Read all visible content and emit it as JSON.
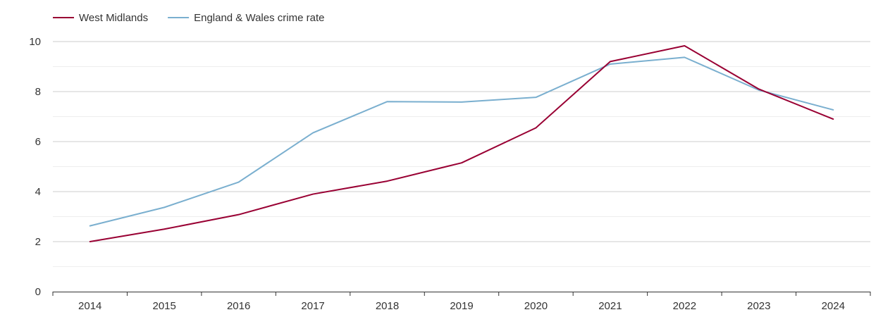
{
  "chart_data": {
    "type": "line",
    "title": "",
    "xlabel": "",
    "ylabel": "",
    "categories": [
      "2014",
      "2015",
      "2016",
      "2017",
      "2018",
      "2019",
      "2020",
      "2021",
      "2022",
      "2023",
      "2024"
    ],
    "ylim": [
      0,
      10
    ],
    "yticks": [
      0,
      2,
      4,
      6,
      8,
      10
    ],
    "grid": true,
    "legend_position": "top-left",
    "series": [
      {
        "name": "West Midlands",
        "color": "#990033",
        "values": [
          2.0,
          2.5,
          3.08,
          3.9,
          4.42,
          5.15,
          6.55,
          9.2,
          9.83,
          8.1,
          6.9
        ]
      },
      {
        "name": "England & Wales crime rate",
        "color": "#7aafcf",
        "values": [
          2.63,
          3.37,
          4.38,
          6.35,
          7.6,
          7.58,
          7.77,
          9.1,
          9.37,
          8.06,
          7.27
        ]
      }
    ]
  }
}
